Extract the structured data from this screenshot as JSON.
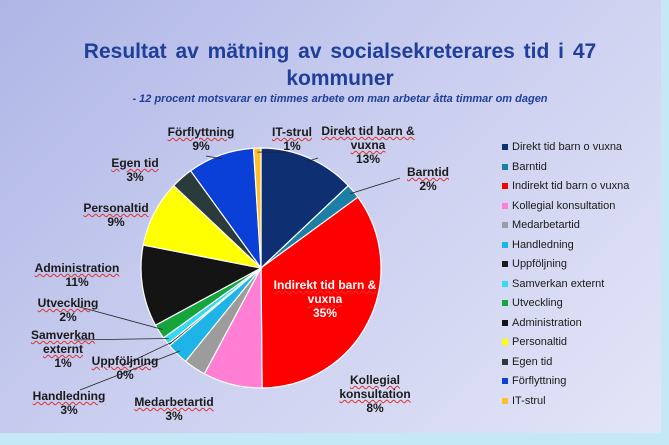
{
  "chart_data": {
    "type": "pie",
    "title": "Resultat av mätning av socialsekreterares tid i 47 kommuner",
    "subtitle": "- 12 procent motsvarar en timmes arbete om man arbetar åtta timmar om dagen",
    "legend_position": "right",
    "slices": [
      {
        "name": "Direkt tid barn o vuxna",
        "label": "Direkt tid barn & vuxna",
        "pct_text": "13%",
        "value": 13,
        "color": "#0f2f73"
      },
      {
        "name": "Barntid",
        "label": "Barntid",
        "pct_text": "2%",
        "value": 2,
        "color": "#1b7fa6"
      },
      {
        "name": "Indirekt tid barn o vuxna",
        "label": "Indirekt tid barn & vuxna",
        "pct_text": "35%",
        "value": 35,
        "color": "#ff0000"
      },
      {
        "name": "Kollegial konsultation",
        "label": "Kollegial konsultation",
        "pct_text": "8%",
        "value": 8,
        "color": "#ff7fd5"
      },
      {
        "name": "Medarbetartid",
        "label": "Medarbetartid",
        "pct_text": "3%",
        "value": 3,
        "color": "#9c9c9c"
      },
      {
        "name": "Handledning",
        "label": "Handledning",
        "pct_text": "3%",
        "value": 3,
        "color": "#1fb4e8"
      },
      {
        "name": "Uppföljning",
        "label": "Uppföljning",
        "pct_text": "0%",
        "value": 0.3,
        "color": "#1b1b1b"
      },
      {
        "name": "Samverkan externt",
        "label": "Samverkan externt",
        "pct_text": "1%",
        "value": 1,
        "color": "#35d9f2"
      },
      {
        "name": "Utveckling",
        "label": "Utveckling",
        "pct_text": "2%",
        "value": 2,
        "color": "#16a53c"
      },
      {
        "name": "Administration",
        "label": "Administration",
        "pct_text": "11%",
        "value": 11,
        "color": "#141414"
      },
      {
        "name": "Personaltid",
        "label": "Personaltid",
        "pct_text": "9%",
        "value": 9,
        "color": "#ffff00"
      },
      {
        "name": "Egen tid",
        "label": "Egen tid",
        "pct_text": "3%",
        "value": 3,
        "color": "#2b3b3b"
      },
      {
        "name": "Förflyttning",
        "label": "Förflyttning",
        "pct_text": "9%",
        "value": 9,
        "color": "#0a3fd8"
      },
      {
        "name": "IT-strul",
        "label": "IT-strul",
        "pct_text": "1%",
        "value": 1,
        "color": "#ffbf2b"
      }
    ]
  }
}
